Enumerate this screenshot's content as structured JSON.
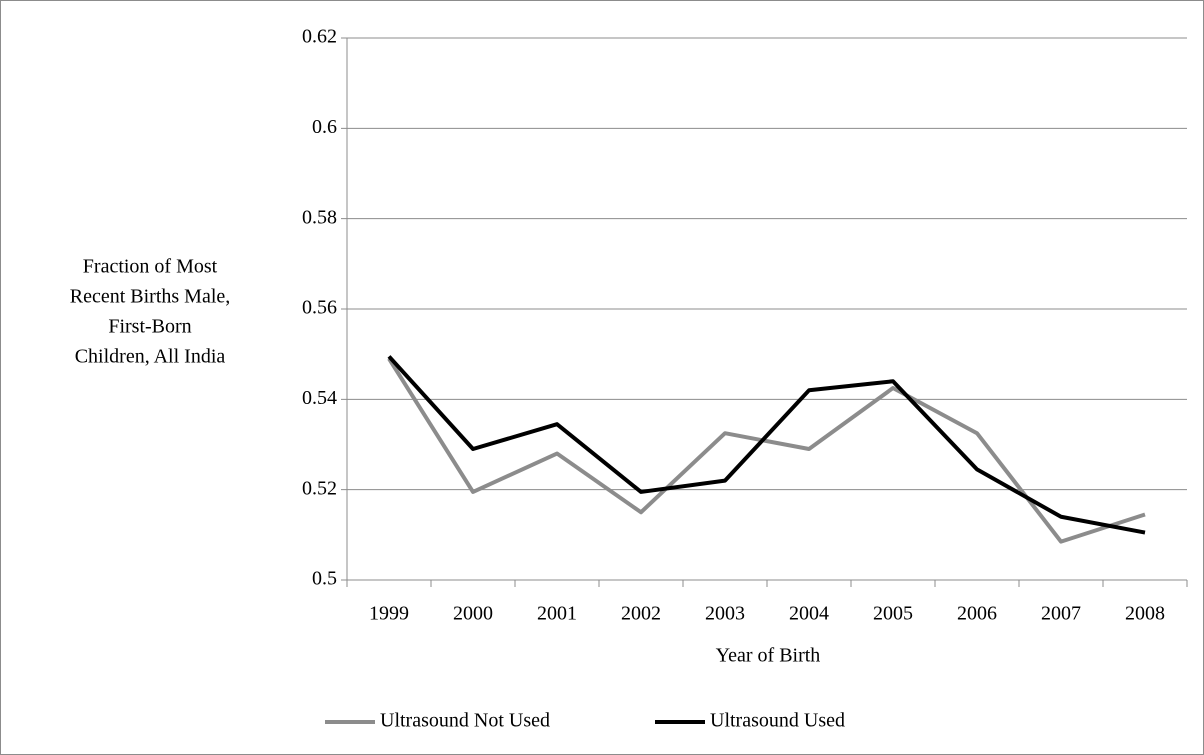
{
  "chart_data": {
    "type": "line",
    "y_label": [
      "Fraction of Most",
      "Recent Births Male,",
      "First-Born",
      "Children, All India"
    ],
    "x_label": "Year of Birth",
    "categories": [
      "1999",
      "2000",
      "2001",
      "2002",
      "2003",
      "2004",
      "2005",
      "2006",
      "2007",
      "2008"
    ],
    "series": [
      {
        "name": "Ultrasound Not Used",
        "color": "#8c8c8c",
        "values": [
          0.549,
          0.5195,
          0.528,
          0.515,
          0.5325,
          0.529,
          0.5425,
          0.5325,
          0.5085,
          0.5145
        ]
      },
      {
        "name": "Ultrasound Used",
        "color": "#000000",
        "values": [
          0.5495,
          0.529,
          0.5345,
          0.5195,
          0.522,
          0.542,
          0.544,
          0.5245,
          0.514,
          0.5105
        ]
      }
    ],
    "ylim": [
      0.5,
      0.62
    ],
    "yticks": [
      0.5,
      0.52,
      0.54,
      0.56,
      0.58,
      0.6,
      0.62
    ],
    "grid": true,
    "legend": "bottom"
  }
}
